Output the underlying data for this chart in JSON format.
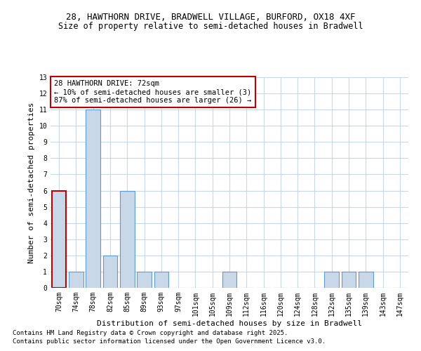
{
  "title1": "28, HAWTHORN DRIVE, BRADWELL VILLAGE, BURFORD, OX18 4XF",
  "title2": "Size of property relative to semi-detached houses in Bradwell",
  "categories": [
    "70sqm",
    "74sqm",
    "78sqm",
    "82sqm",
    "85sqm",
    "89sqm",
    "93sqm",
    "97sqm",
    "101sqm",
    "105sqm",
    "109sqm",
    "112sqm",
    "116sqm",
    "120sqm",
    "124sqm",
    "128sqm",
    "132sqm",
    "135sqm",
    "139sqm",
    "143sqm",
    "147sqm"
  ],
  "values": [
    6,
    1,
    11,
    2,
    6,
    1,
    1,
    0,
    0,
    0,
    1,
    0,
    0,
    0,
    0,
    0,
    1,
    1,
    1,
    0,
    0
  ],
  "bar_color": "#c8d8e8",
  "bar_edge_color": "#5b9bd5",
  "highlight_bar_index": 0,
  "highlight_edge_color": "#c00000",
  "xlabel": "Distribution of semi-detached houses by size in Bradwell",
  "ylabel": "Number of semi-detached properties",
  "ylim": [
    0,
    13
  ],
  "yticks": [
    0,
    1,
    2,
    3,
    4,
    5,
    6,
    7,
    8,
    9,
    10,
    11,
    12,
    13
  ],
  "annotation_title": "28 HAWTHORN DRIVE: 72sqm",
  "annotation_line1": "← 10% of semi-detached houses are smaller (3)",
  "annotation_line2": "87% of semi-detached houses are larger (26) →",
  "annotation_box_color": "#ffffff",
  "annotation_box_edge": "#c00000",
  "footnote1": "Contains HM Land Registry data © Crown copyright and database right 2025.",
  "footnote2": "Contains public sector information licensed under the Open Government Licence v3.0.",
  "bg_color": "#ffffff",
  "grid_color": "#c8d8e8",
  "title1_fontsize": 9,
  "title2_fontsize": 8.5,
  "axis_label_fontsize": 8,
  "tick_fontsize": 7,
  "annotation_fontsize": 7.5,
  "footnote_fontsize": 6.5
}
